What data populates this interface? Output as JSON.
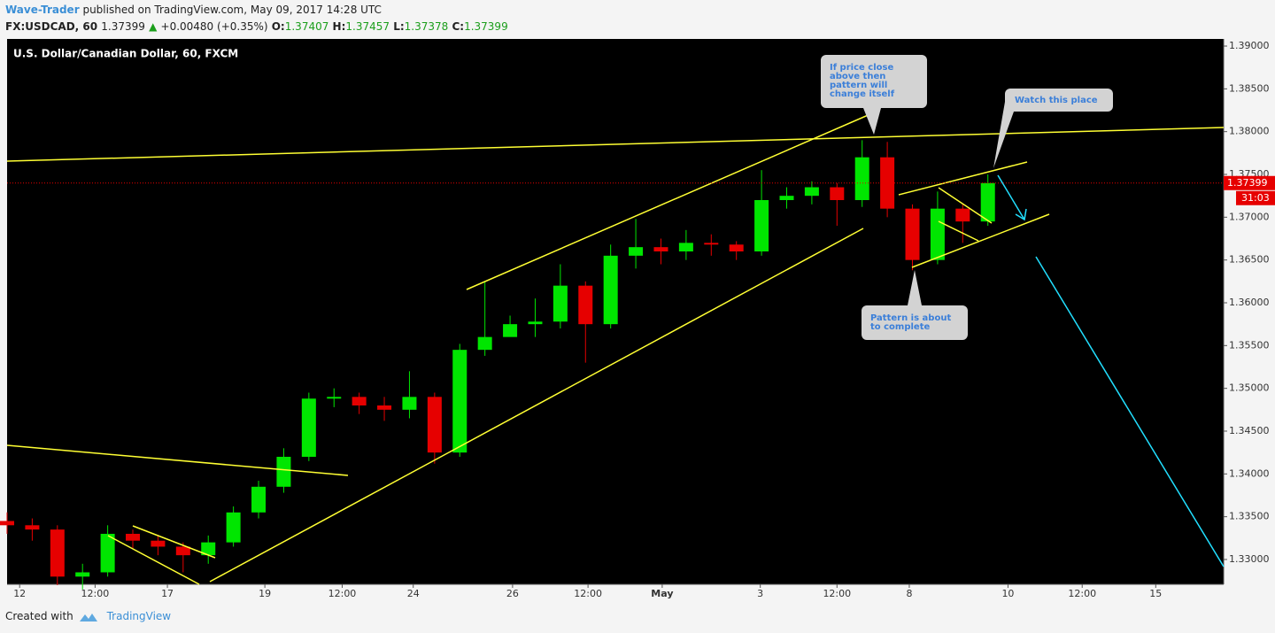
{
  "header": {
    "author": "Wave-Trader",
    "published": "published on TradingView.com, May 09, 2017 14:28 UTC",
    "symbol": "FX:USDCAD, 60",
    "price": "1.37399",
    "change": "+0.00480 (+0.35%)",
    "o_label": "O:",
    "o": "1.37407",
    "h_label": "H:",
    "h": "1.37457",
    "l_label": "L:",
    "l": "1.37378",
    "c_label": "C:",
    "c": "1.37399"
  },
  "footer": {
    "created": "Created with",
    "brand": "TradingView"
  },
  "chart_data": {
    "type": "candlestick",
    "title": "U.S. Dollar/Canadian Dollar, 60, FXCM",
    "x": [
      0,
      4,
      8,
      12,
      16,
      20,
      24,
      28,
      32,
      36,
      40,
      44,
      48,
      52,
      56,
      60,
      64,
      68,
      72,
      76,
      80,
      84,
      88,
      92,
      96,
      100,
      104,
      108,
      112,
      116,
      120,
      124,
      128,
      132,
      136,
      140,
      144,
      148,
      152,
      156
    ],
    "open": [
      1.3345,
      1.334,
      1.3335,
      1.328,
      1.3285,
      1.333,
      1.3322,
      1.3315,
      1.3305,
      1.332,
      1.3355,
      1.3385,
      1.342,
      1.3488,
      1.349,
      1.348,
      1.3475,
      1.349,
      1.3425,
      1.3545,
      1.356,
      1.3575,
      1.3578,
      1.362,
      1.3575,
      1.3655,
      1.3665,
      1.366,
      1.367,
      1.3668,
      1.366,
      1.372,
      1.3725,
      1.3735,
      1.372,
      1.377,
      1.371,
      1.365,
      1.371,
      1.3695
    ],
    "high": [
      1.3355,
      1.3348,
      1.334,
      1.3295,
      1.334,
      1.3335,
      1.3328,
      1.332,
      1.3328,
      1.3362,
      1.3392,
      1.343,
      1.3495,
      1.35,
      1.3495,
      1.349,
      1.352,
      1.3495,
      1.3552,
      1.3625,
      1.3585,
      1.3605,
      1.3645,
      1.3625,
      1.3668,
      1.3698,
      1.3675,
      1.3685,
      1.368,
      1.3672,
      1.3755,
      1.3735,
      1.3742,
      1.374,
      1.379,
      1.3788,
      1.3715,
      1.373,
      1.3715,
      1.375
    ],
    "low": [
      1.333,
      1.3322,
      1.327,
      1.3265,
      1.328,
      1.3312,
      1.3305,
      1.3285,
      1.3295,
      1.3315,
      1.3348,
      1.3378,
      1.3415,
      1.3478,
      1.347,
      1.3462,
      1.3465,
      1.3412,
      1.342,
      1.3538,
      1.3565,
      1.356,
      1.357,
      1.353,
      1.357,
      1.364,
      1.3645,
      1.365,
      1.3655,
      1.365,
      1.3655,
      1.371,
      1.3715,
      1.369,
      1.3712,
      1.37,
      1.3638,
      1.3645,
      1.367,
      1.369
    ],
    "close": [
      1.334,
      1.3335,
      1.328,
      1.3285,
      1.333,
      1.3322,
      1.3315,
      1.3305,
      1.332,
      1.3355,
      1.3385,
      1.342,
      1.3488,
      1.349,
      1.348,
      1.3475,
      1.349,
      1.3425,
      1.3545,
      1.356,
      1.3575,
      1.3578,
      1.362,
      1.3575,
      1.3655,
      1.3665,
      1.366,
      1.367,
      1.3668,
      1.366,
      1.372,
      1.3725,
      1.3735,
      1.372,
      1.377,
      1.371,
      1.365,
      1.371,
      1.3695,
      1.37399
    ],
    "up_color": "#00e600",
    "down_color": "#e60000",
    "xlim": [
      0,
      193.5
    ],
    "xticks": [
      {
        "value": 2,
        "label": "12"
      },
      {
        "value": 14,
        "label": "12:00"
      },
      {
        "value": 25.5,
        "label": "17"
      },
      {
        "value": 41,
        "label": "19"
      },
      {
        "value": 53.3,
        "label": "12:00"
      },
      {
        "value": 64.6,
        "label": "24"
      },
      {
        "value": 80.4,
        "label": "26"
      },
      {
        "value": 92.4,
        "label": "12:00"
      },
      {
        "value": 104.2,
        "label": "May"
      },
      {
        "value": 119.8,
        "label": "3"
      },
      {
        "value": 132,
        "label": "12:00"
      },
      {
        "value": 143.5,
        "label": "8"
      },
      {
        "value": 159.2,
        "label": "10"
      },
      {
        "value": 171,
        "label": "12:00"
      },
      {
        "value": 182.7,
        "label": "15"
      }
    ],
    "ylim": [
      1.3271,
      1.39083
    ],
    "yticks": [
      {
        "value": 1.33,
        "label": "1.33000"
      },
      {
        "value": 1.335,
        "label": "1.33500"
      },
      {
        "value": 1.34,
        "label": "1.34000"
      },
      {
        "value": 1.345,
        "label": "1.34500"
      },
      {
        "value": 1.35,
        "label": "1.35000"
      },
      {
        "value": 1.355,
        "label": "1.35500"
      },
      {
        "value": 1.36,
        "label": "1.36000"
      },
      {
        "value": 1.365,
        "label": "1.36500"
      },
      {
        "value": 1.37,
        "label": "1.37000"
      },
      {
        "value": 1.375,
        "label": "1.37500"
      },
      {
        "value": 1.38,
        "label": "1.38000"
      },
      {
        "value": 1.385,
        "label": "1.38500"
      },
      {
        "value": 1.39,
        "label": "1.39000"
      }
    ],
    "price_label": "1.37399",
    "countdown": "31:03",
    "annotations": [
      {
        "lines": [
          "If price close",
          "above then",
          "pattern will",
          "change itself"
        ]
      },
      {
        "lines": [
          "Watch this place"
        ]
      },
      {
        "lines": [
          "Pattern is about",
          "to complete"
        ]
      }
    ]
  }
}
